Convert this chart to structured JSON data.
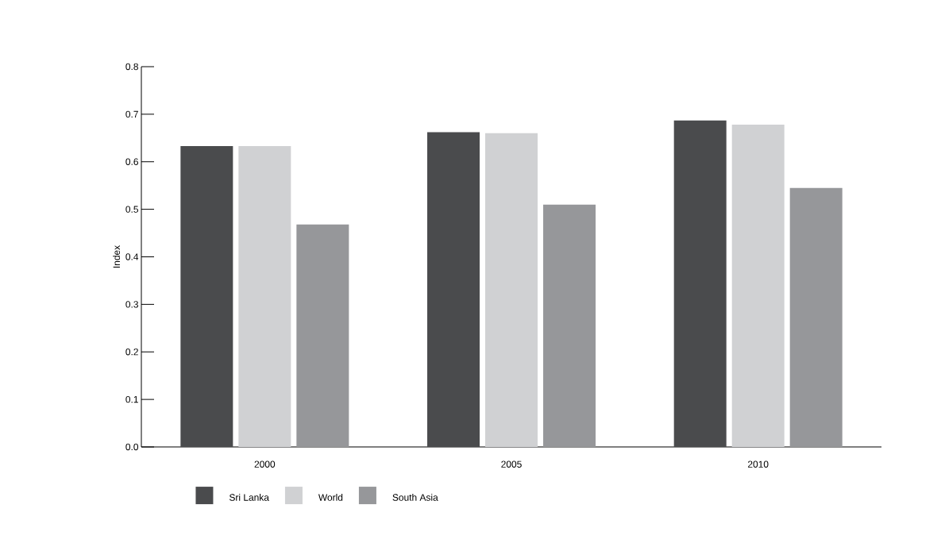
{
  "chart_data": {
    "type": "bar",
    "ylabel": "Index",
    "categories": [
      "2000",
      "2005",
      "2010"
    ],
    "series": [
      {
        "name": "Sri Lanka",
        "color": "#4a4b4d",
        "values": [
          0.633,
          0.662,
          0.687
        ]
      },
      {
        "name": "World",
        "color": "#d0d1d3",
        "values": [
          0.633,
          0.66,
          0.678
        ]
      },
      {
        "name": "South Asia",
        "color": "#96979a",
        "values": [
          0.468,
          0.51,
          0.545
        ]
      }
    ],
    "ylim": [
      0,
      0.8
    ],
    "yticks": [
      {
        "value": 0,
        "label": "0.0"
      },
      {
        "value": 0.1,
        "label": "0.1"
      },
      {
        "value": 0.2,
        "label": "0.2"
      },
      {
        "value": 0.3,
        "label": "0.3"
      },
      {
        "value": 0.4,
        "label": "0.4"
      },
      {
        "value": 0.5,
        "label": "0.5"
      },
      {
        "value": 0.6,
        "label": "0.6"
      },
      {
        "value": 0.7,
        "label": "0.7"
      },
      {
        "value": 0.8,
        "label": "0.8"
      }
    ],
    "legend": "bottom left",
    "grid": false
  }
}
